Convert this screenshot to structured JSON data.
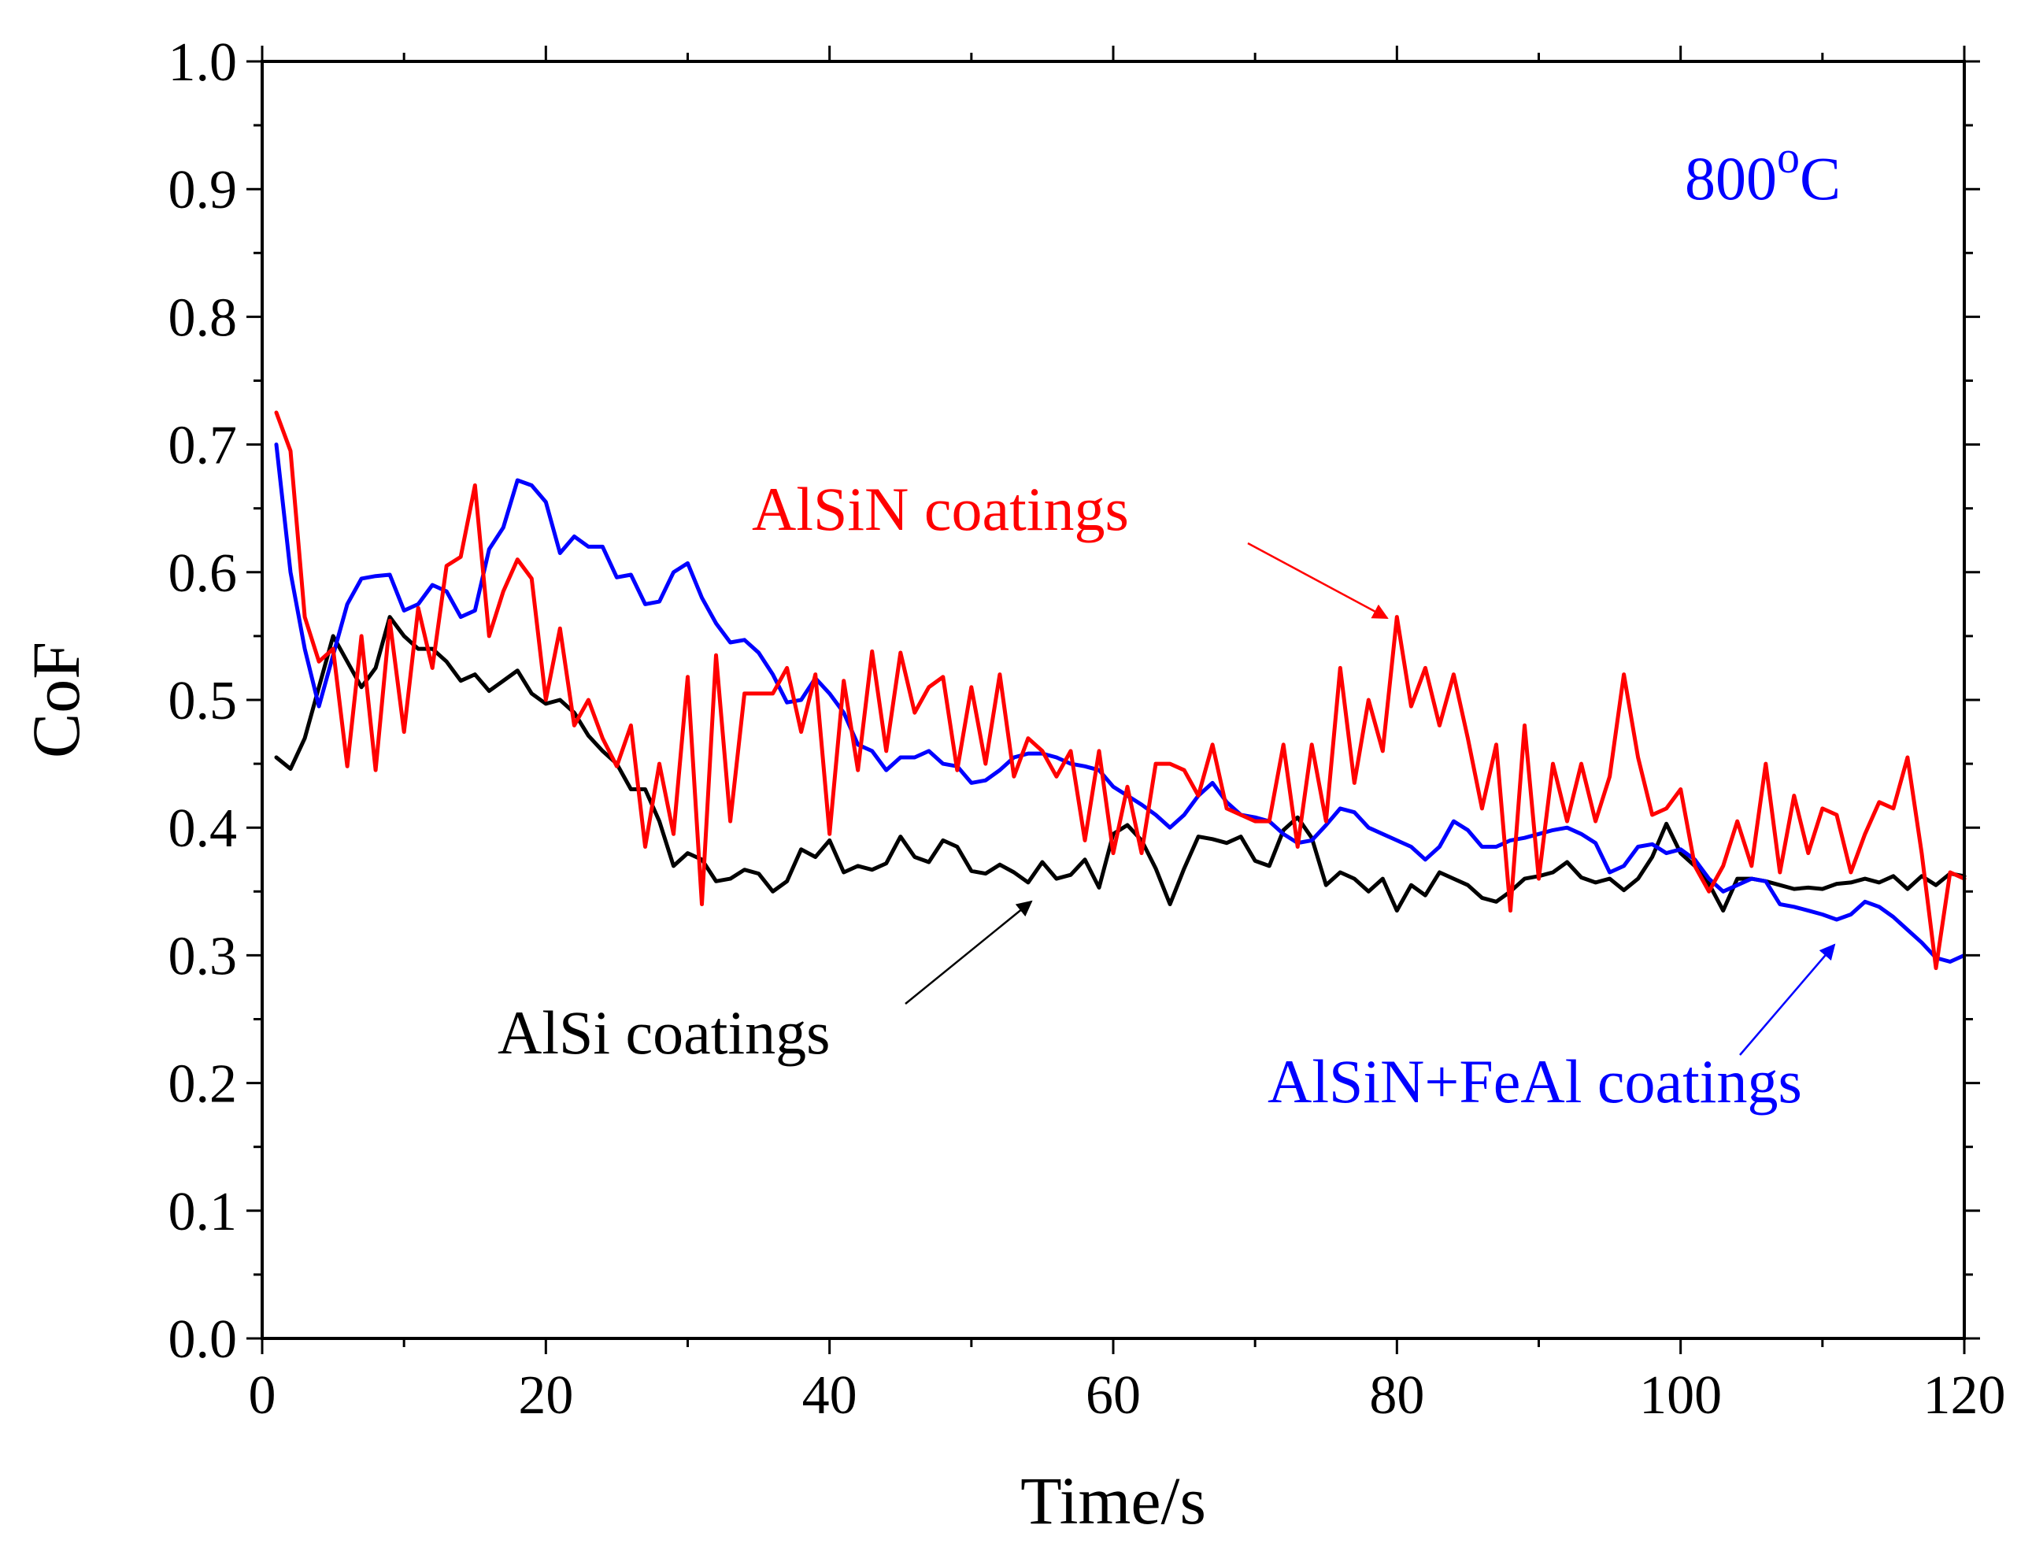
{
  "chart_data": {
    "type": "line",
    "title": "",
    "xlabel": "Time/s",
    "ylabel": "CoF",
    "xlim": [
      0,
      120
    ],
    "ylim": [
      0.0,
      1.0
    ],
    "x_ticks": [
      0,
      20,
      40,
      60,
      80,
      100,
      120
    ],
    "x_tick_labels": [
      "0",
      "20",
      "40",
      "60",
      "80",
      "100",
      "120"
    ],
    "y_ticks": [
      0.0,
      0.1,
      0.2,
      0.3,
      0.4,
      0.5,
      0.6,
      0.7,
      0.8,
      0.9,
      1.0
    ],
    "y_tick_labels": [
      "0.0",
      "0.1",
      "0.2",
      "0.3",
      "0.4",
      "0.5",
      "0.6",
      "0.7",
      "0.8",
      "0.9",
      "1.0"
    ],
    "grid": false,
    "temperature_label": {
      "text": "800",
      "superscript": "o",
      "suffix": "C",
      "color": "#0000ff"
    },
    "series": [
      {
        "name": "AlSi coatings",
        "color": "#000000",
        "x": [
          1,
          2,
          3,
          4,
          5,
          6,
          7,
          8,
          9,
          10,
          11,
          12,
          13,
          14,
          15,
          16,
          17,
          18,
          19,
          20,
          21,
          22,
          23,
          24,
          25,
          26,
          27,
          28,
          29,
          30,
          31,
          32,
          33,
          34,
          35,
          36,
          37,
          38,
          39,
          40,
          41,
          42,
          43,
          44,
          45,
          46,
          47,
          48,
          49,
          50,
          51,
          52,
          53,
          54,
          55,
          56,
          57,
          58,
          59,
          60,
          61,
          62,
          63,
          64,
          65,
          66,
          67,
          68,
          69,
          70,
          71,
          72,
          73,
          74,
          75,
          76,
          77,
          78,
          79,
          80,
          81,
          82,
          83,
          84,
          85,
          86,
          87,
          88,
          89,
          90,
          91,
          92,
          93,
          94,
          95,
          96,
          97,
          98,
          99,
          100,
          101,
          102,
          103,
          104,
          105,
          106,
          107,
          108,
          109,
          110,
          111,
          112,
          113,
          114,
          115,
          116,
          117,
          118,
          119,
          120
        ],
        "values": [
          0.455,
          0.446,
          0.47,
          0.51,
          0.55,
          0.53,
          0.51,
          0.525,
          0.565,
          0.55,
          0.54,
          0.54,
          0.53,
          0.515,
          0.52,
          0.507,
          0.515,
          0.523,
          0.505,
          0.497,
          0.5,
          0.49,
          0.472,
          0.46,
          0.45,
          0.43,
          0.43,
          0.405,
          0.37,
          0.38,
          0.375,
          0.358,
          0.36,
          0.367,
          0.364,
          0.35,
          0.358,
          0.383,
          0.377,
          0.39,
          0.365,
          0.37,
          0.367,
          0.372,
          0.393,
          0.377,
          0.373,
          0.39,
          0.385,
          0.366,
          0.364,
          0.371,
          0.365,
          0.357,
          0.373,
          0.36,
          0.363,
          0.375,
          0.353,
          0.395,
          0.402,
          0.39,
          0.368,
          0.34,
          0.368,
          0.393,
          0.391,
          0.388,
          0.393,
          0.374,
          0.37,
          0.398,
          0.408,
          0.392,
          0.355,
          0.365,
          0.36,
          0.35,
          0.36,
          0.335,
          0.355,
          0.347,
          0.365,
          0.36,
          0.355,
          0.345,
          0.342,
          0.35,
          0.36,
          0.362,
          0.365,
          0.373,
          0.361,
          0.357,
          0.36,
          0.351,
          0.36,
          0.377,
          0.403,
          0.38,
          0.37,
          0.356,
          0.335,
          0.36,
          0.36,
          0.358,
          0.355,
          0.352,
          0.353,
          0.352,
          0.356,
          0.357,
          0.36,
          0.357,
          0.362,
          0.352,
          0.362,
          0.355,
          0.364,
          0.362
        ]
      },
      {
        "name": "AlSiN coatings",
        "color": "#ff0000",
        "x": [
          1,
          2,
          3,
          4,
          5,
          6,
          7,
          8,
          9,
          10,
          11,
          12,
          13,
          14,
          15,
          16,
          17,
          18,
          19,
          20,
          21,
          22,
          23,
          24,
          25,
          26,
          27,
          28,
          29,
          30,
          31,
          32,
          33,
          34,
          35,
          36,
          37,
          38,
          39,
          40,
          41,
          42,
          43,
          44,
          45,
          46,
          47,
          48,
          49,
          50,
          51,
          52,
          53,
          54,
          55,
          56,
          57,
          58,
          59,
          60,
          61,
          62,
          63,
          64,
          65,
          66,
          67,
          68,
          69,
          70,
          71,
          72,
          73,
          74,
          75,
          76,
          77,
          78,
          79,
          80,
          81,
          82,
          83,
          84,
          85,
          86,
          87,
          88,
          89,
          90,
          91,
          92,
          93,
          94,
          95,
          96,
          97,
          98,
          99,
          100,
          101,
          102,
          103,
          104,
          105,
          106,
          107,
          108,
          109,
          110,
          111,
          112,
          113,
          114,
          115,
          116,
          117,
          118,
          119,
          120
        ],
        "values": [
          0.725,
          0.695,
          0.565,
          0.53,
          0.54,
          0.448,
          0.55,
          0.445,
          0.562,
          0.475,
          0.572,
          0.525,
          0.605,
          0.612,
          0.668,
          0.55,
          0.585,
          0.61,
          0.595,
          0.5,
          0.556,
          0.48,
          0.5,
          0.47,
          0.448,
          0.48,
          0.385,
          0.45,
          0.395,
          0.518,
          0.34,
          0.535,
          0.405,
          0.505,
          0.505,
          0.505,
          0.525,
          0.475,
          0.52,
          0.395,
          0.515,
          0.445,
          0.538,
          0.46,
          0.537,
          0.49,
          0.51,
          0.518,
          0.445,
          0.51,
          0.45,
          0.52,
          0.44,
          0.47,
          0.46,
          0.44,
          0.46,
          0.39,
          0.46,
          0.38,
          0.432,
          0.38,
          0.45,
          0.45,
          0.445,
          0.425,
          0.465,
          0.415,
          0.41,
          0.405,
          0.405,
          0.465,
          0.385,
          0.465,
          0.405,
          0.525,
          0.435,
          0.5,
          0.46,
          0.565,
          0.495,
          0.525,
          0.48,
          0.52,
          0.47,
          0.415,
          0.465,
          0.335,
          0.48,
          0.36,
          0.45,
          0.405,
          0.45,
          0.405,
          0.44,
          0.52,
          0.455,
          0.41,
          0.415,
          0.43,
          0.37,
          0.35,
          0.37,
          0.405,
          0.37,
          0.45,
          0.365,
          0.425,
          0.38,
          0.415,
          0.41,
          0.365,
          0.395,
          0.42,
          0.415,
          0.455,
          0.38,
          0.29,
          0.365,
          0.36
        ]
      },
      {
        "name": "AlSiN+FeAl coatings",
        "color": "#0000ff",
        "x": [
          1,
          2,
          3,
          4,
          5,
          6,
          7,
          8,
          9,
          10,
          11,
          12,
          13,
          14,
          15,
          16,
          17,
          18,
          19,
          20,
          21,
          22,
          23,
          24,
          25,
          26,
          27,
          28,
          29,
          30,
          31,
          32,
          33,
          34,
          35,
          36,
          37,
          38,
          39,
          40,
          41,
          42,
          43,
          44,
          45,
          46,
          47,
          48,
          49,
          50,
          51,
          52,
          53,
          54,
          55,
          56,
          57,
          58,
          59,
          60,
          61,
          62,
          63,
          64,
          65,
          66,
          67,
          68,
          69,
          70,
          71,
          72,
          73,
          74,
          75,
          76,
          77,
          78,
          79,
          80,
          81,
          82,
          83,
          84,
          85,
          86,
          87,
          88,
          89,
          90,
          91,
          92,
          93,
          94,
          95,
          96,
          97,
          98,
          99,
          100,
          101,
          102,
          103,
          104,
          105,
          106,
          107,
          108,
          109,
          110,
          111,
          112,
          113,
          114,
          115,
          116,
          117,
          118,
          119,
          120
        ],
        "values": [
          0.7,
          0.6,
          0.54,
          0.495,
          0.535,
          0.575,
          0.595,
          0.597,
          0.598,
          0.57,
          0.575,
          0.59,
          0.585,
          0.565,
          0.57,
          0.618,
          0.635,
          0.672,
          0.668,
          0.655,
          0.615,
          0.628,
          0.62,
          0.62,
          0.596,
          0.598,
          0.575,
          0.577,
          0.6,
          0.607,
          0.58,
          0.56,
          0.545,
          0.547,
          0.537,
          0.52,
          0.498,
          0.5,
          0.517,
          0.505,
          0.49,
          0.465,
          0.46,
          0.445,
          0.455,
          0.455,
          0.46,
          0.45,
          0.448,
          0.435,
          0.437,
          0.445,
          0.455,
          0.458,
          0.458,
          0.455,
          0.45,
          0.448,
          0.445,
          0.432,
          0.425,
          0.418,
          0.41,
          0.4,
          0.41,
          0.425,
          0.435,
          0.42,
          0.41,
          0.408,
          0.405,
          0.395,
          0.388,
          0.39,
          0.402,
          0.415,
          0.412,
          0.4,
          0.395,
          0.39,
          0.385,
          0.375,
          0.385,
          0.405,
          0.398,
          0.385,
          0.385,
          0.39,
          0.392,
          0.395,
          0.398,
          0.4,
          0.395,
          0.388,
          0.365,
          0.37,
          0.385,
          0.387,
          0.38,
          0.383,
          0.375,
          0.36,
          0.35,
          0.355,
          0.36,
          0.358,
          0.34,
          0.338,
          0.335,
          0.332,
          0.328,
          0.332,
          0.342,
          0.338,
          0.33,
          0.32,
          0.31,
          0.298,
          0.295,
          0.3
        ]
      }
    ],
    "annotations": [
      {
        "text": "AlSiN coatings",
        "color": "#ff0000",
        "series": "AlSiN coatings",
        "arrow_to": [
          80,
          0.565
        ]
      },
      {
        "text": "AlSi coatings",
        "color": "#000000",
        "series": "AlSi coatings",
        "arrow_to": [
          54,
          0.355
        ]
      },
      {
        "text": "AlSiN+FeAl coatings",
        "color": "#0000ff",
        "series": "AlSiN+FeAl coatings",
        "arrow_to": [
          111,
          0.33
        ]
      }
    ]
  }
}
